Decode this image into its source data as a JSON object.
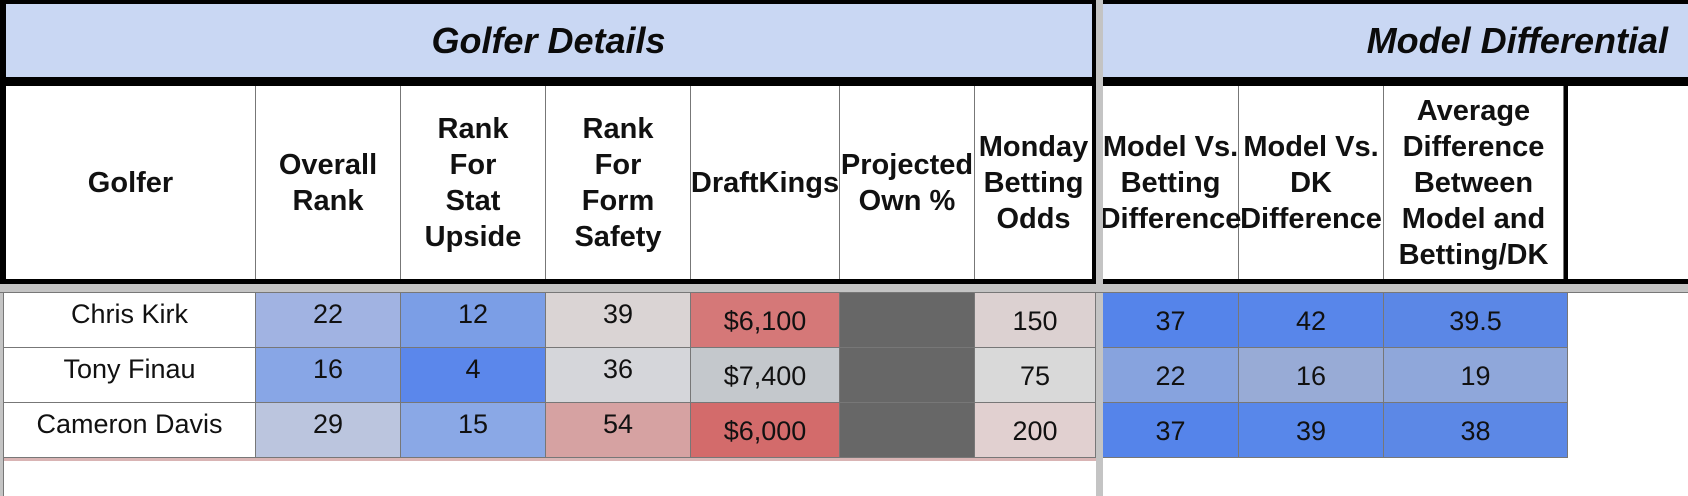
{
  "groups": {
    "golfer_details": "Golfer Details",
    "model_differential": "Model Differential"
  },
  "columns": [
    {
      "label": "Golfer"
    },
    {
      "label": "Overall Rank"
    },
    {
      "label": "Rank For Stat Upside"
    },
    {
      "label": "Rank For Form Safety"
    },
    {
      "label": "DraftKings"
    },
    {
      "label": "Projected Own %"
    },
    {
      "label": "Monday Betting Odds"
    },
    {
      "label": "Model Vs. Betting Difference"
    },
    {
      "label": "Model Vs. DK Difference"
    },
    {
      "label": "Average Difference Between Model and Betting/DK"
    }
  ],
  "rows": [
    {
      "cells": [
        "Chris Kirk",
        "22",
        "12",
        "39",
        "$6,100",
        "",
        "150",
        "37",
        "42",
        "39.5"
      ],
      "colors": [
        "#ffffff",
        "#a1b3e2",
        "#7b9ee6",
        "#dad4d4",
        "#d57878",
        "#676767",
        "#dcd1d1",
        "#5584ea",
        "#5886ea",
        "#5b87e6"
      ]
    },
    {
      "cells": [
        "Tony Finau",
        "16",
        "4",
        "36",
        "$7,400",
        "",
        "75",
        "22",
        "16",
        "19"
      ],
      "colors": [
        "#ffffff",
        "#88a6e6",
        "#5b87eb",
        "#d5d6da",
        "#c4c8cc",
        "#676767",
        "#d9d9d9",
        "#87a3de",
        "#98abd6",
        "#8fa7da"
      ]
    },
    {
      "cells": [
        "Cameron Davis",
        "29",
        "15",
        "54",
        "$6,000",
        "",
        "200",
        "37",
        "39",
        "38"
      ],
      "colors": [
        "#ffffff",
        "#bbc5de",
        "#8aa8e6",
        "#d6a2a2",
        "#d36b6b",
        "#676767",
        "#e1d0d0",
        "#5584ea",
        "#5887ea",
        "#5c88e6"
      ]
    }
  ]
}
